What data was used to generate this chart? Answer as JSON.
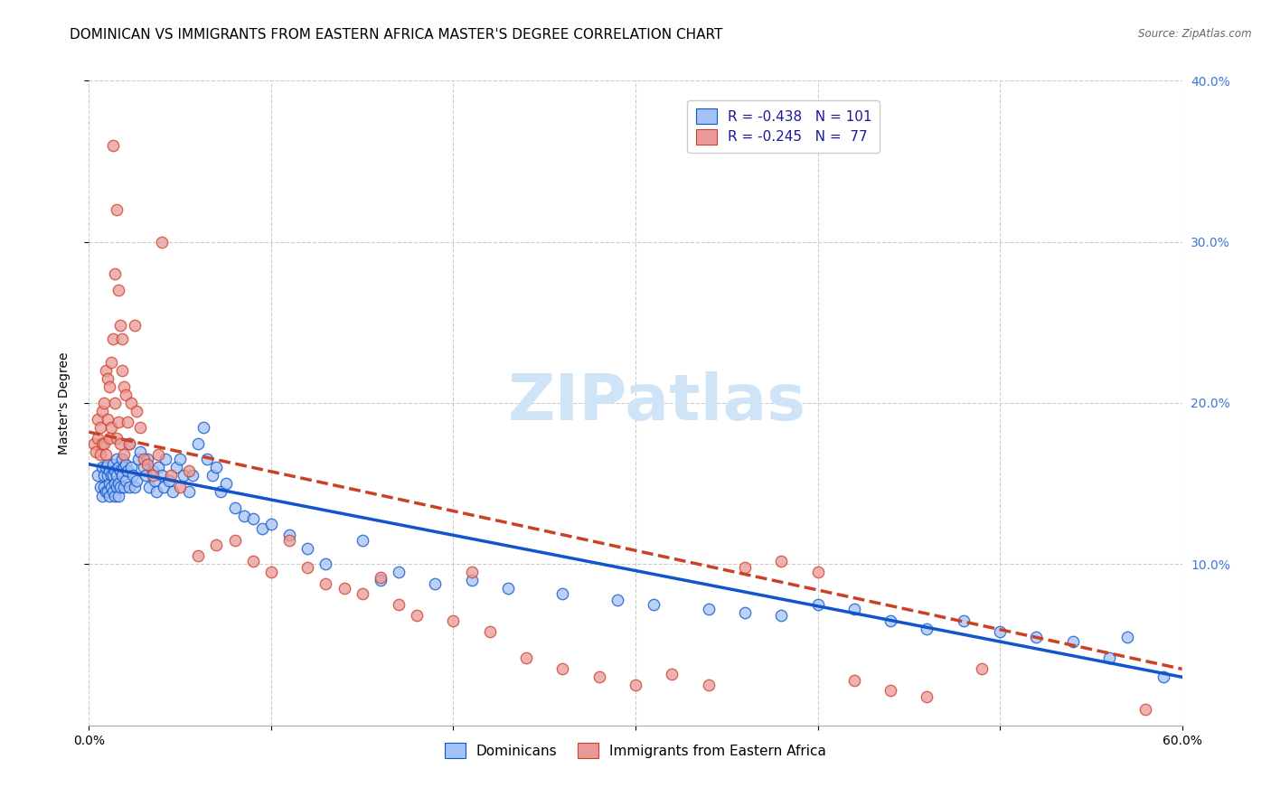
{
  "title": "DOMINICAN VS IMMIGRANTS FROM EASTERN AFRICA MASTER'S DEGREE CORRELATION CHART",
  "source": "Source: ZipAtlas.com",
  "ylabel": "Master's Degree",
  "xlim": [
    0.0,
    0.6
  ],
  "ylim": [
    0.0,
    0.4
  ],
  "xtick_vals": [
    0.0,
    0.1,
    0.2,
    0.3,
    0.4,
    0.5,
    0.6
  ],
  "xtick_labels": [
    "0.0%",
    "",
    "",
    "",
    "",
    "",
    "60.0%"
  ],
  "ytick_vals": [
    0.1,
    0.2,
    0.3,
    0.4
  ],
  "right_ytick_labels": [
    "10.0%",
    "20.0%",
    "30.0%",
    "40.0%"
  ],
  "blue_color": "#a4c2f4",
  "pink_color": "#ea9999",
  "blue_line_color": "#1155cc",
  "pink_line_color": "#cc4125",
  "watermark": "ZIPatlas",
  "legend_r_blue": "R = -0.438",
  "legend_n_blue": "N = 101",
  "legend_r_pink": "R = -0.245",
  "legend_n_pink": "N =  77",
  "blue_scatter_x": [
    0.005,
    0.006,
    0.007,
    0.007,
    0.008,
    0.008,
    0.009,
    0.009,
    0.01,
    0.01,
    0.01,
    0.011,
    0.011,
    0.011,
    0.012,
    0.012,
    0.013,
    0.013,
    0.013,
    0.014,
    0.014,
    0.014,
    0.015,
    0.015,
    0.015,
    0.016,
    0.016,
    0.016,
    0.017,
    0.017,
    0.018,
    0.018,
    0.019,
    0.019,
    0.02,
    0.02,
    0.021,
    0.022,
    0.022,
    0.023,
    0.024,
    0.025,
    0.026,
    0.027,
    0.028,
    0.03,
    0.031,
    0.032,
    0.033,
    0.035,
    0.036,
    0.037,
    0.038,
    0.04,
    0.041,
    0.042,
    0.044,
    0.046,
    0.048,
    0.05,
    0.052,
    0.055,
    0.057,
    0.06,
    0.063,
    0.065,
    0.068,
    0.07,
    0.072,
    0.075,
    0.08,
    0.085,
    0.09,
    0.095,
    0.1,
    0.11,
    0.12,
    0.13,
    0.15,
    0.16,
    0.17,
    0.19,
    0.21,
    0.23,
    0.26,
    0.29,
    0.31,
    0.34,
    0.36,
    0.38,
    0.4,
    0.42,
    0.44,
    0.46,
    0.48,
    0.5,
    0.52,
    0.54,
    0.56,
    0.57,
    0.59
  ],
  "blue_scatter_y": [
    0.155,
    0.148,
    0.16,
    0.142,
    0.155,
    0.148,
    0.16,
    0.145,
    0.162,
    0.155,
    0.145,
    0.158,
    0.15,
    0.142,
    0.155,
    0.148,
    0.162,
    0.155,
    0.145,
    0.158,
    0.15,
    0.142,
    0.165,
    0.155,
    0.148,
    0.16,
    0.15,
    0.142,
    0.158,
    0.148,
    0.165,
    0.155,
    0.16,
    0.148,
    0.162,
    0.152,
    0.158,
    0.175,
    0.148,
    0.16,
    0.155,
    0.148,
    0.152,
    0.165,
    0.17,
    0.16,
    0.155,
    0.165,
    0.148,
    0.158,
    0.152,
    0.145,
    0.16,
    0.155,
    0.148,
    0.165,
    0.152,
    0.145,
    0.16,
    0.165,
    0.155,
    0.145,
    0.155,
    0.175,
    0.185,
    0.165,
    0.155,
    0.16,
    0.145,
    0.15,
    0.135,
    0.13,
    0.128,
    0.122,
    0.125,
    0.118,
    0.11,
    0.1,
    0.115,
    0.09,
    0.095,
    0.088,
    0.09,
    0.085,
    0.082,
    0.078,
    0.075,
    0.072,
    0.07,
    0.068,
    0.075,
    0.072,
    0.065,
    0.06,
    0.065,
    0.058,
    0.055,
    0.052,
    0.042,
    0.055,
    0.03
  ],
  "pink_scatter_x": [
    0.003,
    0.004,
    0.005,
    0.005,
    0.006,
    0.006,
    0.007,
    0.007,
    0.008,
    0.008,
    0.009,
    0.009,
    0.01,
    0.01,
    0.011,
    0.011,
    0.012,
    0.012,
    0.013,
    0.013,
    0.014,
    0.014,
    0.015,
    0.015,
    0.016,
    0.016,
    0.017,
    0.017,
    0.018,
    0.018,
    0.019,
    0.019,
    0.02,
    0.021,
    0.022,
    0.023,
    0.025,
    0.026,
    0.028,
    0.03,
    0.032,
    0.035,
    0.038,
    0.04,
    0.045,
    0.05,
    0.055,
    0.06,
    0.07,
    0.08,
    0.09,
    0.1,
    0.11,
    0.12,
    0.13,
    0.14,
    0.15,
    0.16,
    0.17,
    0.18,
    0.2,
    0.21,
    0.22,
    0.24,
    0.26,
    0.28,
    0.3,
    0.32,
    0.34,
    0.36,
    0.38,
    0.4,
    0.42,
    0.44,
    0.46,
    0.49,
    0.58
  ],
  "pink_scatter_y": [
    0.175,
    0.17,
    0.19,
    0.178,
    0.185,
    0.168,
    0.195,
    0.175,
    0.2,
    0.175,
    0.22,
    0.168,
    0.215,
    0.19,
    0.21,
    0.178,
    0.225,
    0.185,
    0.36,
    0.24,
    0.28,
    0.2,
    0.32,
    0.178,
    0.27,
    0.188,
    0.248,
    0.175,
    0.24,
    0.22,
    0.21,
    0.168,
    0.205,
    0.188,
    0.175,
    0.2,
    0.248,
    0.195,
    0.185,
    0.165,
    0.162,
    0.155,
    0.168,
    0.3,
    0.155,
    0.148,
    0.158,
    0.105,
    0.112,
    0.115,
    0.102,
    0.095,
    0.115,
    0.098,
    0.088,
    0.085,
    0.082,
    0.092,
    0.075,
    0.068,
    0.065,
    0.095,
    0.058,
    0.042,
    0.035,
    0.03,
    0.025,
    0.032,
    0.025,
    0.098,
    0.102,
    0.095,
    0.028,
    0.022,
    0.018,
    0.035,
    0.01
  ],
  "blue_trendline_x": [
    0.0,
    0.6
  ],
  "blue_trendline_y": [
    0.162,
    0.03
  ],
  "pink_trendline_x": [
    0.0,
    0.6
  ],
  "pink_trendline_y": [
    0.182,
    0.035
  ],
  "title_fontsize": 11,
  "axis_fontsize": 10,
  "tick_fontsize": 10,
  "watermark_fontsize": 52,
  "watermark_color": "#d0e4f7",
  "right_axis_color": "#3c78d8",
  "grid_color": "#cccccc",
  "legend_fontsize": 11
}
